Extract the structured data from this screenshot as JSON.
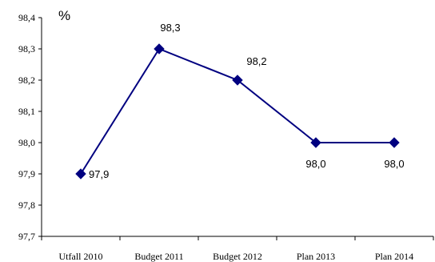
{
  "chart_data": {
    "type": "line",
    "unit_label": "%",
    "categories": [
      "Utfall 2010",
      "Budget 2011",
      "Budget 2012",
      "Plan 2013",
      "Plan 2014"
    ],
    "series": [
      {
        "values": [
          97.9,
          98.3,
          98.2,
          98.0,
          98.0
        ]
      }
    ],
    "data_labels": [
      "97,9",
      "98,3",
      "98,2",
      "98,0",
      "98,0"
    ],
    "y_ticks": [
      97.7,
      97.8,
      97.9,
      98.0,
      98.1,
      98.2,
      98.3,
      98.4
    ],
    "y_tick_labels": [
      "97,7",
      "97,8",
      "97,9",
      "98,0",
      "98,1",
      "98,2",
      "98,3",
      "98,4"
    ],
    "ylim": [
      97.7,
      98.4
    ],
    "grid": false,
    "legend": "none",
    "series_color": "#000080"
  }
}
